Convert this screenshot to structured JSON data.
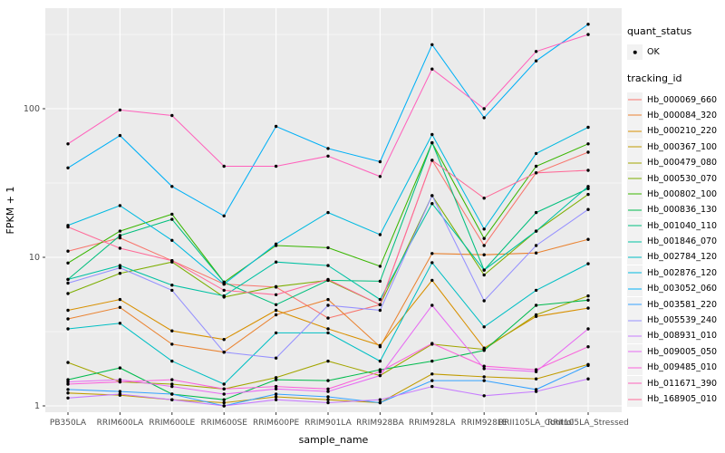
{
  "chart_data": {
    "type": "line",
    "title": "",
    "xlabel": "sample_name",
    "ylabel": "FPKM + 1",
    "yscale": "log10",
    "ylim": [
      1,
      470
    ],
    "yticks": [
      1,
      10,
      100
    ],
    "ytick_labels": [
      "1",
      "10",
      "100"
    ],
    "yminor": [
      3.162,
      31.62,
      316.2
    ],
    "grid": true,
    "legend_position": "right",
    "legend_titles": {
      "shape": "quant_status",
      "color": "tracking_id"
    },
    "quant_status_items": [
      {
        "label": "OK",
        "marker": "point"
      }
    ],
    "categories": [
      "PB350LA",
      "RRIM600LA",
      "RRIM600LE",
      "RRIM600SE",
      "RRIM600PE",
      "RRIM901LA",
      "RRIM928BA",
      "RRIM928LA",
      "RRIM928LE",
      "RRII105LA_Control",
      "RRII105LA_Stressed"
    ],
    "series": [
      {
        "name": "Hb_000069_660",
        "color": "#F8766D",
        "values": [
          11,
          13.5,
          9.5,
          6.6,
          6.3,
          3.9,
          4.8,
          45,
          12,
          37,
          51
        ]
      },
      {
        "name": "Hb_000084_320",
        "color": "#EA8331",
        "values": [
          3.85,
          4.6,
          2.6,
          2.3,
          4.1,
          5.2,
          2.5,
          10.6,
          10.4,
          10.7,
          13.2
        ]
      },
      {
        "name": "Hb_000210_220",
        "color": "#D89000",
        "values": [
          4.4,
          5.2,
          3.2,
          2.8,
          4.4,
          3.3,
          2.55,
          7.0,
          2.45,
          4.0,
          4.55
        ]
      },
      {
        "name": "Hb_000367_100",
        "color": "#C09B00",
        "values": [
          1.22,
          1.18,
          1.1,
          1.05,
          1.15,
          1.1,
          1.05,
          1.64,
          1.57,
          1.52,
          1.9
        ]
      },
      {
        "name": "Hb_000479_080",
        "color": "#A3A500",
        "values": [
          1.96,
          1.45,
          1.4,
          1.3,
          1.55,
          2.0,
          1.6,
          2.6,
          2.4,
          4.1,
          5.5
        ]
      },
      {
        "name": "Hb_000530_070",
        "color": "#7CAE00",
        "values": [
          5.7,
          7.8,
          9.3,
          5.4,
          6.35,
          7.0,
          4.8,
          26,
          7.6,
          15,
          26.5
        ]
      },
      {
        "name": "Hb_000802_100",
        "color": "#39B600",
        "values": [
          9.15,
          15,
          19.5,
          6.8,
          12,
          11.6,
          8.7,
          59,
          13.4,
          41,
          58
        ]
      },
      {
        "name": "Hb_000836_130",
        "color": "#00BB4E",
        "values": [
          1.5,
          1.8,
          1.2,
          1.1,
          1.5,
          1.48,
          1.75,
          2.0,
          2.36,
          4.75,
          5.15
        ]
      },
      {
        "name": "Hb_001040_110",
        "color": "#00BF7D",
        "values": [
          7.1,
          14,
          18,
          6.8,
          4.8,
          7.0,
          6.9,
          59,
          8.2,
          20,
          29
        ]
      },
      {
        "name": "Hb_001846_070",
        "color": "#00C1A3",
        "values": [
          7.1,
          8.8,
          6.5,
          5.5,
          9.3,
          8.8,
          5.2,
          23,
          8.2,
          15,
          30
        ]
      },
      {
        "name": "Hb_002784_120",
        "color": "#00BFC4",
        "values": [
          3.3,
          3.6,
          2.0,
          1.4,
          3.1,
          3.1,
          2.0,
          9.2,
          3.4,
          6.0,
          9.05
        ]
      },
      {
        "name": "Hb_002876_120",
        "color": "#00BAE0",
        "values": [
          16.4,
          22.3,
          13,
          6.6,
          12.3,
          20,
          14.2,
          67,
          15.5,
          50,
          75
        ]
      },
      {
        "name": "Hb_003052_060",
        "color": "#00B0F6",
        "values": [
          40,
          66,
          30,
          19,
          76,
          54,
          44,
          270,
          87,
          210,
          370
        ]
      },
      {
        "name": "Hb_003581_220",
        "color": "#35A2FF",
        "values": [
          1.29,
          1.25,
          1.2,
          1.0,
          1.2,
          1.15,
          1.05,
          1.48,
          1.48,
          1.29,
          1.87
        ]
      },
      {
        "name": "Hb_005539_240",
        "color": "#9590FF",
        "values": [
          6.7,
          8.5,
          6.0,
          2.3,
          2.1,
          4.75,
          4.4,
          26,
          5.1,
          12,
          21
        ]
      },
      {
        "name": "Hb_008931_010",
        "color": "#C77CFF",
        "values": [
          1.13,
          1.2,
          1.1,
          1.0,
          1.1,
          1.05,
          1.1,
          1.35,
          1.17,
          1.25,
          1.52
        ]
      },
      {
        "name": "Hb_009005_050",
        "color": "#E76BF3",
        "values": [
          1.45,
          1.5,
          1.35,
          1.2,
          1.3,
          1.25,
          1.6,
          4.75,
          1.78,
          1.7,
          3.3
        ]
      },
      {
        "name": "Hb_009485_010",
        "color": "#FA62DB",
        "values": [
          1.4,
          1.45,
          1.5,
          1.3,
          1.35,
          1.3,
          1.7,
          2.63,
          1.85,
          1.75,
          2.5
        ]
      },
      {
        "name": "Hb_011671_390",
        "color": "#FF62BC",
        "values": [
          58,
          98,
          90,
          41,
          41,
          48,
          35,
          185,
          100,
          243,
          316
        ]
      },
      {
        "name": "Hb_168905_010",
        "color": "#FF6A98",
        "values": [
          16,
          11.5,
          9.5,
          6.0,
          5.6,
          7.1,
          4.8,
          45,
          25,
          37,
          38.5
        ]
      }
    ],
    "point_color": "#000000"
  },
  "style": {
    "panel_bg": "#EBEBEB",
    "grid_color": "#FFFFFF",
    "tick_color": "#333333",
    "tick_label_color": "#4D4D4D",
    "axis_title_color": "#000000",
    "legend_key_bg": "#F2F2F2"
  }
}
